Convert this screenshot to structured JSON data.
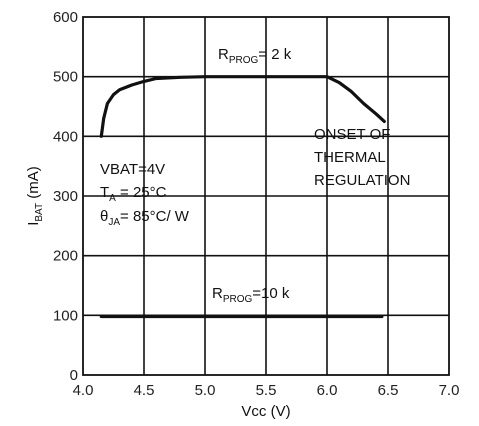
{
  "chart_data": {
    "type": "line",
    "xlabel": "Vcc (V)",
    "ylabel": "IBAT (mA)",
    "ylabel_main": "I",
    "ylabel_sub": "BAT",
    "ylabel_unit": " (mA)",
    "xlim": [
      4.0,
      7.0
    ],
    "ylim": [
      0,
      600
    ],
    "grid": true,
    "x_ticks": [
      "4.0",
      "4.5",
      "5.0",
      "5.5",
      "6.0",
      "6.5",
      "7.0"
    ],
    "y_ticks": [
      "0",
      "100",
      "200",
      "300",
      "400",
      "500",
      "600"
    ],
    "series": [
      {
        "name": "RPROG = 2 k",
        "x": [
          4.15,
          4.17,
          4.2,
          4.25,
          4.3,
          4.4,
          4.5,
          4.6,
          4.8,
          5.0,
          5.5,
          5.9,
          6.0,
          6.1,
          6.2,
          6.3,
          6.4,
          6.47
        ],
        "y": [
          400,
          430,
          455,
          470,
          478,
          486,
          492,
          497,
          499,
          500,
          500,
          500,
          500,
          490,
          475,
          455,
          438,
          425
        ]
      },
      {
        "name": "RPROG = 10 k",
        "x": [
          4.15,
          6.45
        ],
        "y": [
          98,
          98
        ]
      }
    ],
    "annotations": {
      "rprog_2k": {
        "main": "R",
        "sub": "PROG",
        "rest": "= 2 k"
      },
      "rprog_10k": {
        "main": "R",
        "sub": "PROG",
        "rest": "=10 k"
      },
      "onset": [
        "ONSET OF",
        "THERMAL",
        "REGULATION"
      ],
      "vbat": "VBAT=4V",
      "ta": {
        "main": "T",
        "sub": "A",
        "rest": " = 25°C"
      },
      "theta": {
        "main": "θ",
        "sub": "JA",
        "rest": "= 85°C/ W"
      }
    }
  }
}
